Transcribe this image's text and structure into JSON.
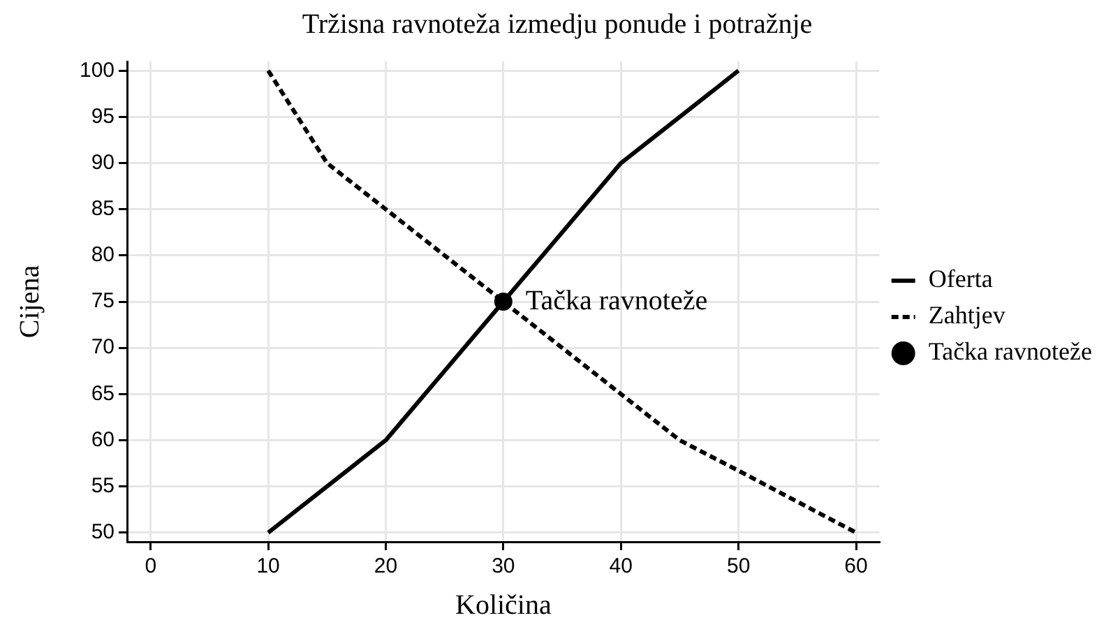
{
  "chart_data": {
    "type": "line",
    "title": "Tržisna ravnoteža izmedju ponude i potražnje",
    "xlabel": "Količina",
    "ylabel": "Cijena",
    "xlim": [
      -2,
      62
    ],
    "xticks": [
      0,
      10,
      20,
      30,
      40,
      50,
      60
    ],
    "ylim": [
      49,
      101
    ],
    "yticks": [
      50,
      55,
      60,
      65,
      70,
      75,
      80,
      85,
      90,
      95,
      100
    ],
    "grid": true,
    "legend": "right",
    "series": [
      {
        "name": "Oferta",
        "color": "#000000",
        "line_style": "solid",
        "marker": "none",
        "x": [
          10,
          20,
          30,
          40,
          50
        ],
        "values": [
          50,
          60,
          75,
          90,
          100
        ]
      },
      {
        "name": "Zahtjev",
        "color": "#000000",
        "line_style": "dashed",
        "marker": "none",
        "x": [
          10,
          15,
          20,
          30,
          40,
          45,
          50,
          60
        ],
        "values": [
          100,
          90,
          85,
          75,
          65,
          60,
          56.7,
          50
        ]
      },
      {
        "name": "Tačka ravnoteže",
        "type": "scatter",
        "color": "#000000",
        "marker": "circle",
        "x": [
          30
        ],
        "values": [
          75
        ]
      }
    ],
    "annotations": [
      {
        "text": "Tačka ravnoteže",
        "x": 30,
        "y": 75
      }
    ]
  }
}
